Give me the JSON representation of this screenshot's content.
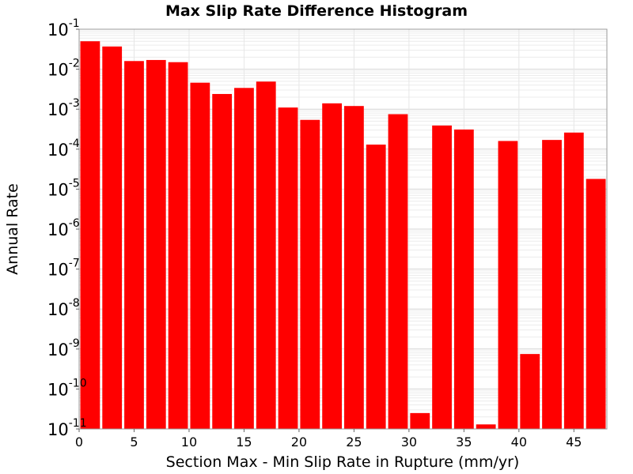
{
  "chart_data": {
    "type": "bar",
    "title": "Max Slip Rate Difference Histogram",
    "xlabel": "Section Max - Min Slip Rate in Rupture (mm/yr)",
    "ylabel": "Annual Rate",
    "yscale": "log",
    "ylim": [
      1e-11,
      0.1
    ],
    "xlim": [
      0,
      48
    ],
    "bin_width": 2,
    "x_ticks": [
      0,
      5,
      10,
      15,
      20,
      25,
      30,
      35,
      40,
      45
    ],
    "y_ticks": [
      {
        "base": "10",
        "exp": "-1",
        "value": 0.1
      },
      {
        "base": "10",
        "exp": "-2",
        "value": 0.01
      },
      {
        "base": "10",
        "exp": "-3",
        "value": 0.001
      },
      {
        "base": "10",
        "exp": "-4",
        "value": 0.0001
      },
      {
        "base": "10",
        "exp": "-5",
        "value": 1e-05
      },
      {
        "base": "10",
        "exp": "-6",
        "value": 1e-06
      },
      {
        "base": "10",
        "exp": "-7",
        "value": 1e-07
      },
      {
        "base": "10",
        "exp": "-8",
        "value": 1e-08
      },
      {
        "base": "10",
        "exp": "-9",
        "value": 1e-09
      },
      {
        "base": "10",
        "exp": "-10",
        "value": 1e-10
      },
      {
        "base": "10",
        "exp": "-11",
        "value": 1e-11
      }
    ],
    "x": [
      1,
      3,
      5,
      7,
      9,
      11,
      13,
      15,
      17,
      19,
      21,
      23,
      25,
      27,
      29,
      31,
      33,
      35,
      37,
      39,
      41,
      43,
      45,
      47
    ],
    "values": [
      0.05,
      0.037,
      0.016,
      0.017,
      0.015,
      0.0046,
      0.0024,
      0.0034,
      0.0049,
      0.0011,
      0.00054,
      0.0014,
      0.0012,
      0.00013,
      0.00075,
      2.5e-11,
      0.00039,
      0.00031,
      1.3e-11,
      0.00016,
      7.5e-10,
      0.00017,
      0.00026,
      1.8e-05
    ],
    "bar_color": "#ff0000",
    "grid": true
  }
}
